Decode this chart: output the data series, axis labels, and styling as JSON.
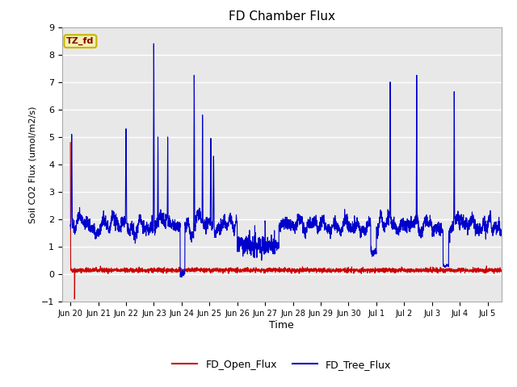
{
  "title": "FD Chamber Flux",
  "ylabel": "Soil CO2 Flux (umol/m2/s)",
  "xlabel": "Time",
  "ylim": [
    -1.0,
    9.0
  ],
  "yticks": [
    -1.0,
    0.0,
    1.0,
    2.0,
    3.0,
    4.0,
    5.0,
    6.0,
    7.0,
    8.0,
    9.0
  ],
  "bg_color": "#e8e8e8",
  "open_flux_color": "#cc0000",
  "tree_flux_color": "#0000cc",
  "annotation_text": "TZ_fd",
  "annotation_bg": "#f5f0b0",
  "annotation_border": "#c8b400",
  "annotation_text_color": "#8b0000",
  "legend_open": "FD_Open_Flux",
  "legend_tree": "FD_Tree_Flux",
  "total_days": 15.5,
  "xtick_positions": [
    0,
    1,
    2,
    3,
    4,
    5,
    6,
    7,
    8,
    9,
    10,
    11,
    12,
    13,
    14,
    15
  ],
  "xtick_labels": [
    "Jun 20",
    "Jun 21",
    "Jun 22",
    "Jun 23",
    "Jun 24",
    "Jun 25",
    "Jun 26",
    "Jun 27",
    "Jun 28",
    "Jun 29",
    "Jun 30",
    "Jul 1",
    "Jul 2",
    "Jul 3",
    "Jul 4",
    "Jul 5"
  ]
}
